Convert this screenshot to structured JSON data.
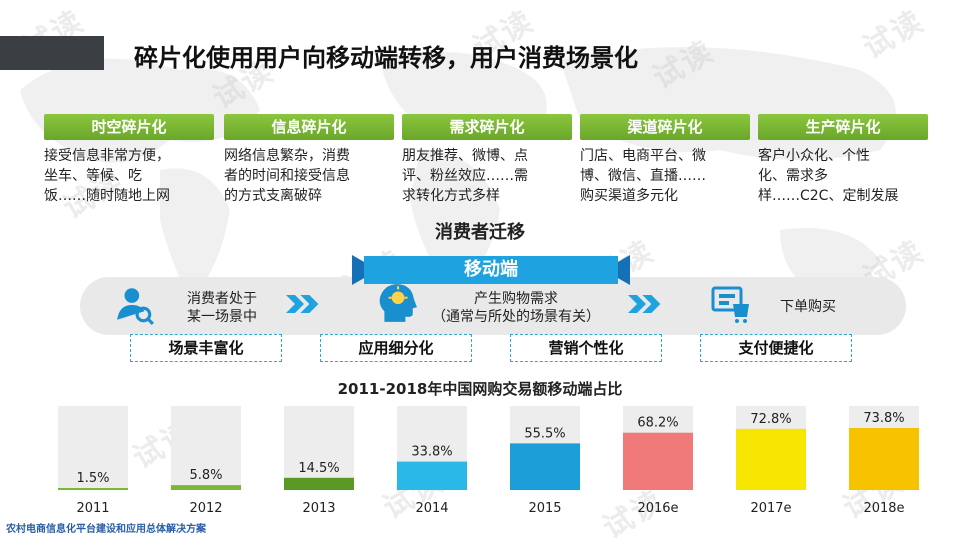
{
  "title": "碎片化使用用户向移动端转移，用户消费场景化",
  "watermark": "试读",
  "categories": [
    {
      "head": "时空碎片化",
      "lines": [
        "接受信息非常方便，",
        "坐车、等候、吃",
        "饭……随时随地上网"
      ]
    },
    {
      "head": "信息碎片化",
      "lines": [
        "网络信息繁杂，消费",
        "者的时间和接受信息",
        "的方式支离破碎"
      ]
    },
    {
      "head": "需求碎片化",
      "lines": [
        "朋友推荐、微博、点",
        "评、粉丝效应……需",
        "求转化方式多样"
      ]
    },
    {
      "head": "渠道碎片化",
      "lines": [
        "门店、电商平台、微",
        "博、微信、直播……",
        "购买渠道多元化"
      ]
    },
    {
      "head": "生产碎片化",
      "lines": [
        "客户小众化、个性",
        "化、需求多",
        "样……C2C、定制发展"
      ]
    }
  ],
  "migration_title": "消费者迁移",
  "mobile_label": "移动端",
  "steps": [
    {
      "line1": "消费者处于",
      "line2": "某一场景中",
      "icon": "user-search-icon"
    },
    {
      "line1": "产生购物需求",
      "line2": "（通常与所处的场景有关）",
      "icon": "idea-head-icon"
    },
    {
      "line1": "下单购买",
      "line2": "",
      "icon": "shopping-cart-icon"
    }
  ],
  "tags": [
    "场景丰富化",
    "应用细分化",
    "营销个性化",
    "支付便捷化"
  ],
  "chart_data": {
    "type": "bar",
    "title": "2011-2018年中国网购交易额移动端占比",
    "categories": [
      "2011",
      "2012",
      "2013",
      "2014",
      "2015",
      "2016e",
      "2017e",
      "2018e"
    ],
    "values": [
      1.5,
      5.8,
      14.5,
      33.8,
      55.5,
      68.2,
      72.8,
      73.8
    ],
    "value_labels": [
      "1.5%",
      "5.8%",
      "14.5%",
      "33.8%",
      "55.5%",
      "68.2%",
      "72.8%",
      "73.8%"
    ],
    "ylim": [
      0,
      100
    ],
    "colors": [
      "#7ab733",
      "#7ab733",
      "#5a9a24",
      "#29b8e8",
      "#1c9fd8",
      "#f07a7a",
      "#f7e600",
      "#f7c200"
    ],
    "track_color": "#ededed"
  },
  "footer": "农村电商信息化平台建设和应用总体解决方案"
}
